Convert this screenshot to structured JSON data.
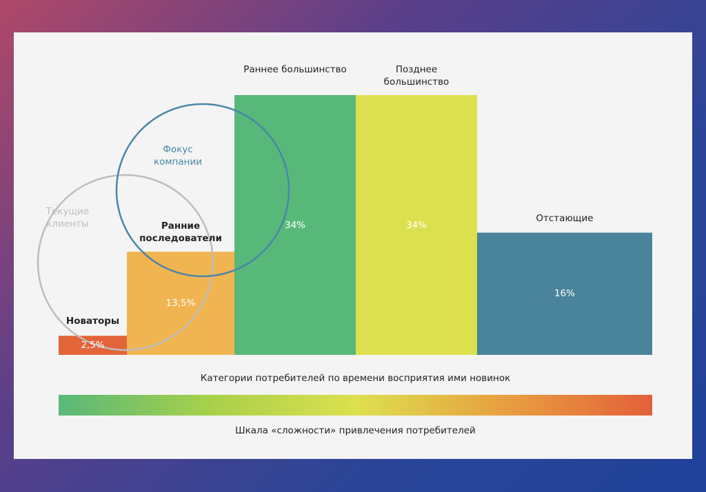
{
  "chart_data": {
    "type": "bar",
    "categories": [
      "Новаторы",
      "Ранние последователи",
      "Раннее большинство",
      "Позднее большинство",
      "Отстающие"
    ],
    "values": [
      2.5,
      13.5,
      34,
      34,
      16
    ],
    "value_labels": [
      "2,5%",
      "13,5%",
      "34%",
      "34%",
      "16%"
    ],
    "colors": [
      "#e4643a",
      "#f0b450",
      "#58b87a",
      "#dce04e",
      "#4a839c"
    ],
    "annotations": [
      "Текущие клиенты",
      "Фокус компании"
    ],
    "annotation_colors": [
      "#bdbdbd",
      "#4a86a8"
    ],
    "xlabel": "Категории потребителей по времени восприятия ими новинок",
    "scale_label": "Шкала «сложности» привлечения потребителей",
    "scale_colors": [
      "#58b87a",
      "#a6d04a",
      "#dce04e",
      "#e8a040",
      "#e4603a"
    ]
  }
}
